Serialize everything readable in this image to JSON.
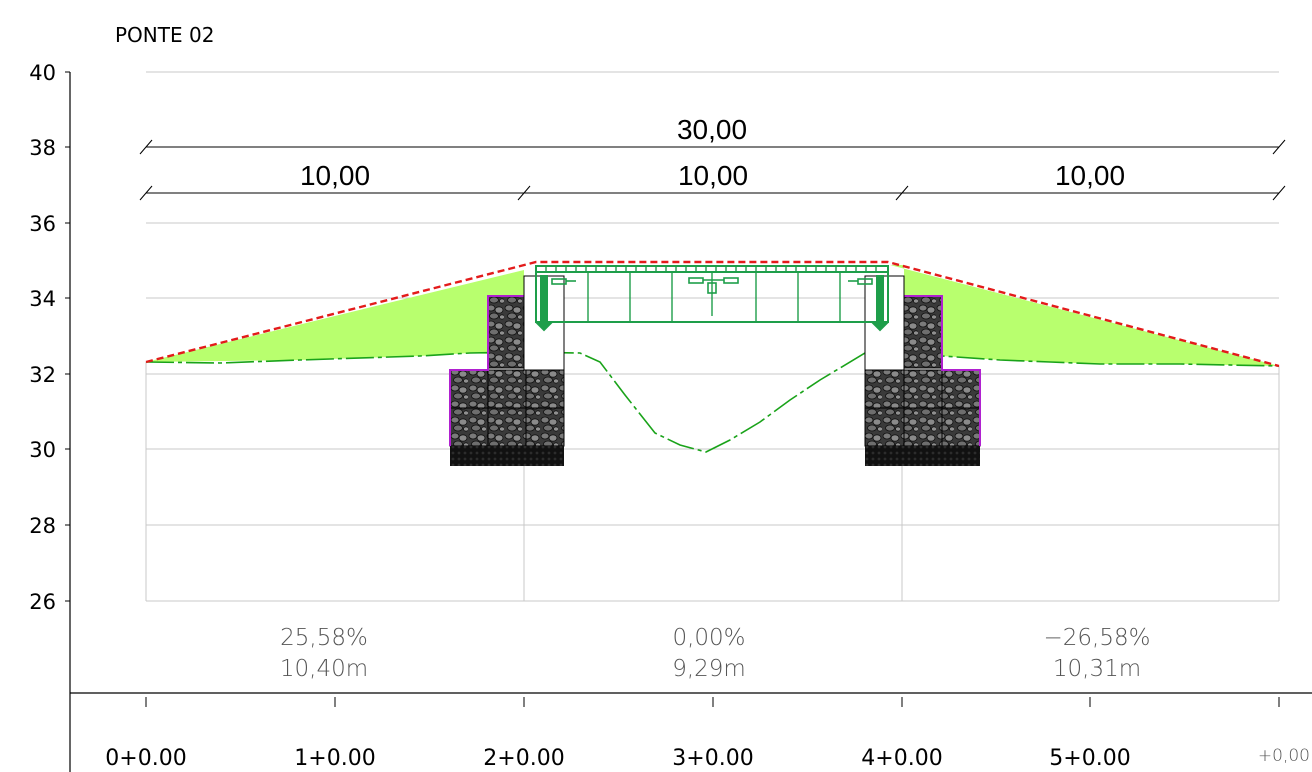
{
  "title": "PONTE 02",
  "y_axis": {
    "ticks": [
      "40",
      "38",
      "36",
      "34",
      "32",
      "30",
      "28",
      "26"
    ]
  },
  "dimensions": {
    "total": "30,00",
    "segments": [
      "10,00",
      "10,00",
      "10,00"
    ]
  },
  "segments_info": [
    {
      "slope": "25,58%",
      "length": "10,40m"
    },
    {
      "slope": "0,00%",
      "length": "9,29m"
    },
    {
      "slope": "−26,58%",
      "length": "10,31m"
    }
  ],
  "stations": [
    "0+0.00",
    "1+0.00",
    "2+0.00",
    "3+0.00",
    "4+0.00",
    "5+0.00"
  ],
  "station_partial": "+0,00",
  "colors": {
    "grade_line": "#e31b1b",
    "fill_area": "#b8ff6e",
    "terrain_line": "#1aa31a",
    "bridge": "#1e9e4a",
    "gabion_outline": "#b020d0",
    "gabion_fill": "#3a3a3a",
    "grid": "#c8c8c8"
  }
}
